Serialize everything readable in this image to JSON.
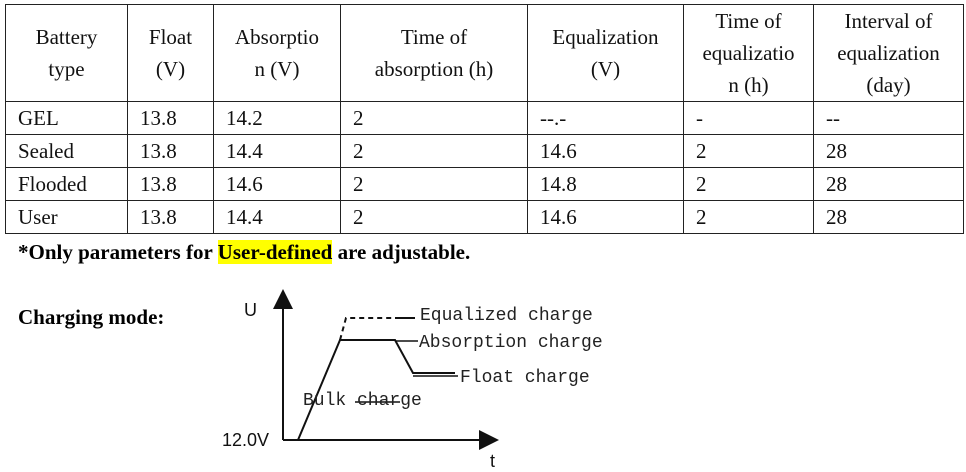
{
  "table": {
    "header": [
      "Battery\ntype",
      "Float\n(V)",
      "Absorptio\nn (V)",
      "Time of\nabsorption (h)",
      "Equalization\n(V)",
      "Time of\nequalizatio\nn (h)",
      "Interval of\nequalization\n(day)"
    ],
    "rows": [
      [
        "GEL",
        "13.8",
        "14.2",
        "2",
        "--.-",
        "-",
        "--"
      ],
      [
        "Sealed",
        "13.8",
        "14.4",
        "2",
        "14.6",
        "2",
        "28"
      ],
      [
        "Flooded",
        "13.8",
        "14.6",
        "2",
        "14.8",
        "2",
        "28"
      ],
      [
        "User",
        "13.8",
        "14.4",
        "2",
        "14.6",
        "2",
        "28"
      ]
    ]
  },
  "note": {
    "prefix": "*Only parameters for",
    "highlight": "User-defined",
    "suffix": "are adjustable."
  },
  "charging": {
    "title": "Charging mode:",
    "y_axis": "U",
    "x_axis": "t",
    "start": "12.0V",
    "labels": {
      "equalized": "Equalized charge",
      "absorption": "Absorption charge",
      "float": "Float charge",
      "bulk": "Bulk charge"
    }
  }
}
